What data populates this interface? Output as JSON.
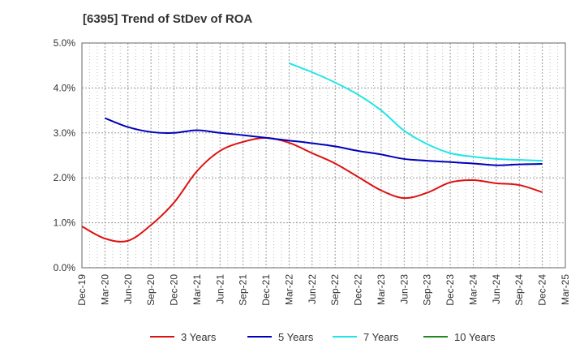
{
  "chart_data": {
    "type": "line",
    "title": "[6395]  Trend of StDev of ROA",
    "xlabel": "",
    "ylabel": "",
    "x": [
      "Dec-19",
      "Mar-20",
      "Jun-20",
      "Sep-20",
      "Dec-20",
      "Mar-21",
      "Jun-21",
      "Sep-21",
      "Dec-21",
      "Mar-22",
      "Jun-22",
      "Sep-22",
      "Dec-22",
      "Mar-23",
      "Jun-23",
      "Sep-23",
      "Dec-23",
      "Mar-24",
      "Jun-24",
      "Sep-24",
      "Dec-24",
      "Mar-25"
    ],
    "ylim": [
      0,
      5
    ],
    "yticks": [
      "0.0%",
      "1.0%",
      "2.0%",
      "3.0%",
      "4.0%",
      "5.0%"
    ],
    "grid": true,
    "legend_position": "bottom",
    "series": [
      {
        "name": "3 Years",
        "color": "#dd1111",
        "values": [
          0.92,
          0.65,
          0.6,
          0.95,
          1.45,
          2.15,
          2.6,
          2.8,
          2.89,
          2.78,
          2.55,
          2.32,
          2.02,
          1.72,
          1.55,
          1.67,
          1.9,
          1.95,
          1.88,
          1.84,
          1.68,
          null
        ]
      },
      {
        "name": "5 Years",
        "color": "#0000bb",
        "values": [
          null,
          3.33,
          3.13,
          3.02,
          3.0,
          3.06,
          3.0,
          2.95,
          2.89,
          2.83,
          2.77,
          2.7,
          2.6,
          2.52,
          2.42,
          2.38,
          2.35,
          2.32,
          2.28,
          2.3,
          2.31,
          null
        ]
      },
      {
        "name": "7 Years",
        "color": "#22e5e5",
        "values": [
          null,
          null,
          null,
          null,
          null,
          null,
          null,
          null,
          null,
          4.55,
          4.35,
          4.12,
          3.85,
          3.5,
          3.05,
          2.75,
          2.55,
          2.47,
          2.42,
          2.4,
          2.38,
          null
        ]
      },
      {
        "name": "10 Years",
        "color": "#228822",
        "values": [
          null,
          null,
          null,
          null,
          null,
          null,
          null,
          null,
          null,
          null,
          null,
          null,
          null,
          null,
          null,
          null,
          null,
          null,
          null,
          null,
          null,
          null
        ]
      }
    ]
  }
}
